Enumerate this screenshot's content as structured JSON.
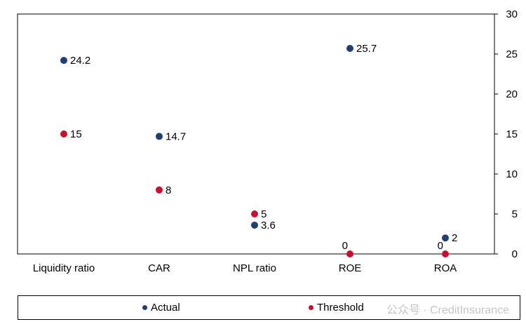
{
  "chart_data": {
    "type": "scatter",
    "categories": [
      "Liquidity  ratio",
      "CAR",
      "NPL  ratio",
      "ROE",
      "ROA"
    ],
    "series": [
      {
        "name": "Actual",
        "color": "#1f3f73",
        "values": [
          24.2,
          14.7,
          3.6,
          25.7,
          2
        ]
      },
      {
        "name": "Threshold",
        "color": "#c8102e",
        "values": [
          15,
          8,
          5,
          0,
          0
        ]
      }
    ],
    "y_axis": {
      "position": "right",
      "ylim": [
        0,
        30
      ],
      "ticks": [
        0,
        5,
        10,
        15,
        20,
        25,
        30
      ]
    },
    "grid": false,
    "legend": "bottom"
  },
  "legend": {
    "actual": "Actual",
    "threshold": "Threshold"
  },
  "watermark": "公众号 · CreditInsurance"
}
